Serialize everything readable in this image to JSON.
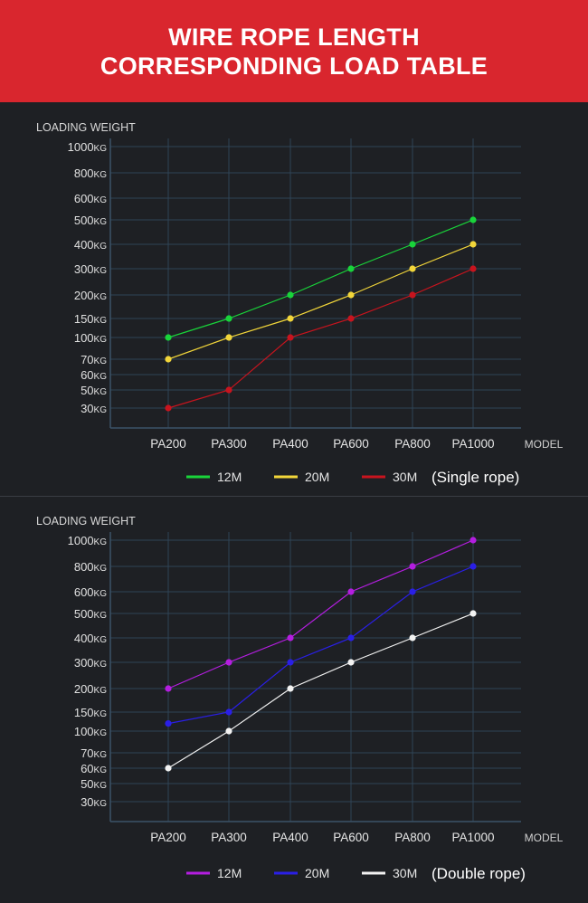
{
  "header": {
    "title_line1": "WIRE ROPE LENGTH",
    "title_line2": "CORRESPONDING LOAD TABLE"
  },
  "chart_data": [
    {
      "type": "line",
      "ylabel": "LOADING WEIGHT",
      "xlabel": "MODEL",
      "y_unit": "KG",
      "categories": [
        "PA200",
        "PA300",
        "PA400",
        "PA600",
        "PA800",
        "PA1000"
      ],
      "y_ticks": [
        30,
        50,
        60,
        70,
        100,
        150,
        200,
        300,
        400,
        500,
        600,
        800,
        1000
      ],
      "grid": true,
      "legend_position": "bottom",
      "legend_note": "(Single rope)",
      "series": [
        {
          "name": "12M",
          "color": "#19d43a",
          "values": [
            100,
            150,
            200,
            300,
            400,
            500
          ]
        },
        {
          "name": "20M",
          "color": "#f2d63a",
          "values": [
            70,
            100,
            150,
            200,
            300,
            400
          ]
        },
        {
          "name": "30M",
          "color": "#c8141e",
          "values": [
            30,
            50,
            100,
            150,
            200,
            300
          ]
        }
      ]
    },
    {
      "type": "line",
      "ylabel": "LOADING WEIGHT",
      "xlabel": "MODEL",
      "y_unit": "KG",
      "categories": [
        "PA200",
        "PA300",
        "PA400",
        "PA600",
        "PA800",
        "PA1000"
      ],
      "y_ticks": [
        30,
        50,
        60,
        70,
        100,
        150,
        200,
        300,
        400,
        500,
        600,
        800,
        1000
      ],
      "grid": true,
      "legend_position": "bottom",
      "legend_note": "(Double rope)",
      "series": [
        {
          "name": "12M",
          "color": "#b41ee0",
          "values": [
            200,
            300,
            400,
            600,
            800,
            1000
          ]
        },
        {
          "name": "20M",
          "color": "#2a1fe6",
          "values": [
            120,
            150,
            300,
            400,
            600,
            800
          ]
        },
        {
          "name": "30M",
          "color": "#f2f2f2",
          "values": [
            60,
            100,
            200,
            300,
            400,
            500
          ]
        }
      ]
    }
  ]
}
